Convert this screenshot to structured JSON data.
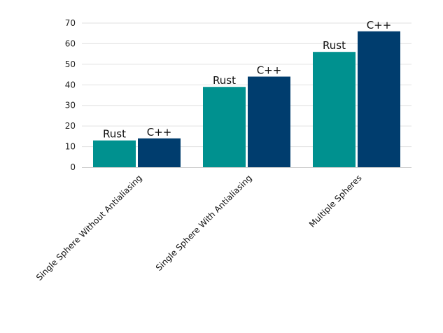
{
  "chart_data": {
    "type": "bar",
    "categories": [
      "Single Sphere Without Antialiasing",
      "Single Sphere With Antialiasing",
      "Multiple Spheres"
    ],
    "series": [
      {
        "name": "Rust",
        "values": [
          13,
          39,
          56
        ],
        "color": "#00918f"
      },
      {
        "name": "C++",
        "values": [
          14,
          44,
          66
        ],
        "color": "#003d6e"
      }
    ],
    "data_labels": [
      [
        "Rust",
        "C++"
      ],
      [
        "Rust",
        "C++"
      ],
      [
        "Rust",
        "C++"
      ]
    ],
    "ylim": [
      0,
      70
    ],
    "yticks": [
      "0",
      "10",
      "20",
      "30",
      "40",
      "50",
      "60",
      "70"
    ],
    "grid": true,
    "legend": "none",
    "title": "",
    "xlabel": "",
    "ylabel": ""
  }
}
